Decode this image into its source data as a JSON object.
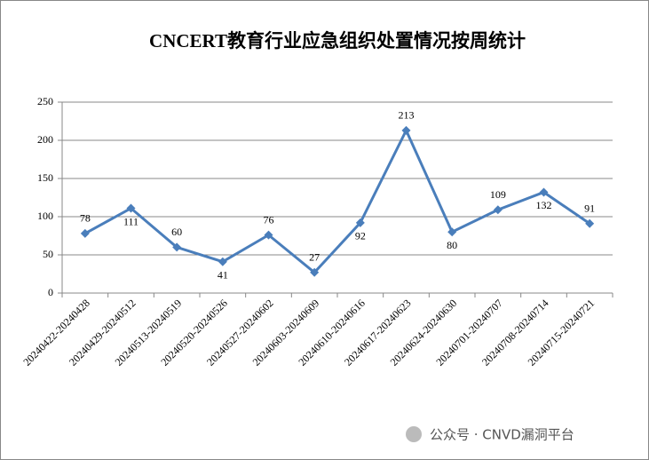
{
  "chart_data": {
    "type": "line",
    "title": "CNCERT教育行业应急组织处置情况按周统计",
    "categories": [
      "20240422-20240428",
      "20240429-20240512",
      "20240513-20240519",
      "20240520-20240526",
      "20240527-20240602",
      "20240603-20240609",
      "20240610-20240616",
      "20240617-20240623",
      "20240624-20240630",
      "20240701-20240707",
      "20240708-20240714",
      "20240715-20240721"
    ],
    "values": [
      78,
      111,
      60,
      41,
      76,
      27,
      92,
      213,
      80,
      109,
      132,
      91
    ],
    "color": "#4a7ebb",
    "ylim": [
      0,
      250
    ],
    "yticks": [
      0,
      50,
      100,
      150,
      200,
      250
    ],
    "grid": true
  },
  "watermark": "公众号 · CNVD漏洞平台"
}
